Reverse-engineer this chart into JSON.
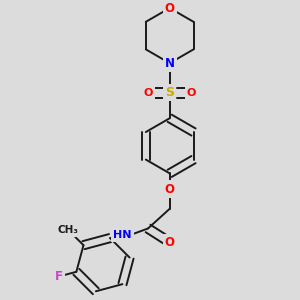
{
  "background_color": "#dcdcdc",
  "bond_color": "#1a1a1a",
  "atom_colors": {
    "O": "#ff0000",
    "N": "#0000ff",
    "S": "#ccaa00",
    "F": "#cc44cc",
    "C": "#1a1a1a",
    "H": "#448888"
  },
  "figsize": [
    3.0,
    3.0
  ],
  "dpi": 100
}
